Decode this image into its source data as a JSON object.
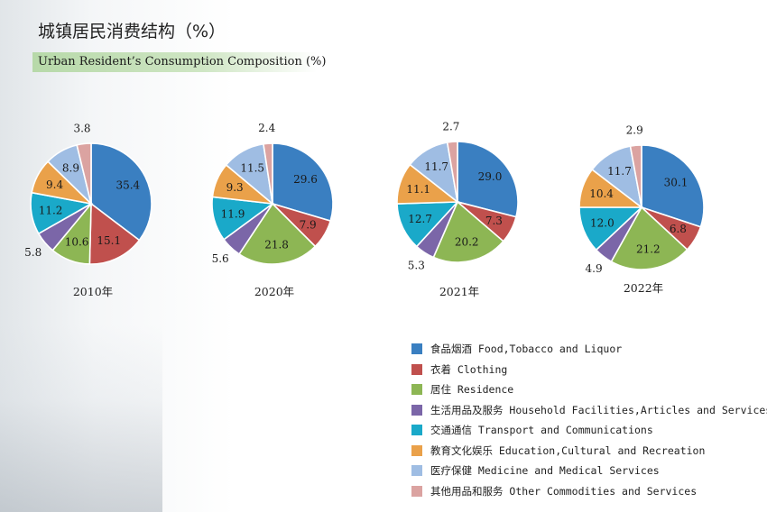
{
  "title": "城镇居民消费结构（%）",
  "subtitle": "Urban Resident’s Consumption Composition (%)",
  "chart_data": {
    "type": "pie",
    "categories": [
      "食品烟酒 Food,Tobacco and Liquor",
      "衣着 Clothing",
      "居住 Residence",
      "生活用品及服务 Household Facilities,Articles and Services",
      "交通通信 Transport and Communications",
      "教育文化娱乐 Education,Cultural and Recreation",
      "医疗保健 Medicine and Medical Services",
      "其他用品和服务 Other Commodities and Services"
    ],
    "colors": [
      "#3a7fc1",
      "#c0504d",
      "#8db654",
      "#7b66a8",
      "#1aa9c9",
      "#eaa14a",
      "#9fbde3",
      "#dba3a1"
    ],
    "charts": [
      {
        "label": "2010年",
        "values": [
          35.4,
          15.1,
          10.6,
          5.8,
          11.2,
          9.4,
          8.9,
          3.8
        ]
      },
      {
        "label": "2020年",
        "values": [
          29.6,
          7.9,
          21.8,
          5.6,
          11.9,
          9.3,
          11.5,
          2.4
        ]
      },
      {
        "label": "2021年",
        "values": [
          29.0,
          7.3,
          20.2,
          5.3,
          12.7,
          11.1,
          11.7,
          2.7
        ]
      },
      {
        "label": "2022年",
        "values": [
          30.1,
          6.8,
          21.2,
          4.9,
          12.0,
          10.4,
          11.7,
          2.9
        ]
      }
    ],
    "legend_position": "bottom-right"
  }
}
